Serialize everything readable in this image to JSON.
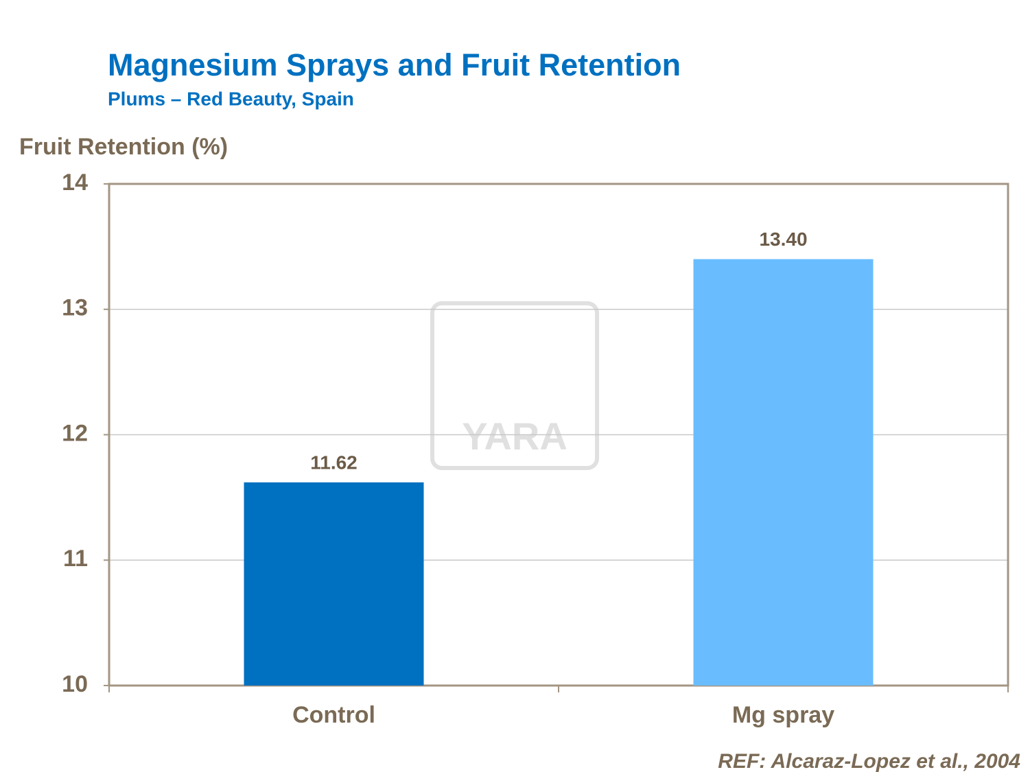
{
  "chart_data": {
    "type": "bar",
    "title": "Magnesium Sprays and Fruit Retention",
    "subtitle": "Plums – Red Beauty, Spain",
    "y_label": "Fruit Retention  (%)",
    "categories": [
      "Control",
      "Mg spray"
    ],
    "values": [
      11.62,
      13.4
    ],
    "value_labels": [
      "11.62",
      "13.40"
    ],
    "colors": [
      "#0070c0",
      "#69bdff"
    ],
    "ylim": [
      10,
      14
    ],
    "yticks": [
      10,
      11,
      12,
      13,
      14
    ],
    "grid": true,
    "watermark": "YARA",
    "note": "REF: Alcaraz-Lopez et al., 2004"
  }
}
